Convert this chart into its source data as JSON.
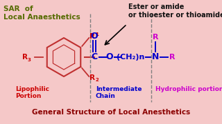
{
  "bg_color": "#f5c8c8",
  "title": "General Structure of Local Anesthetics",
  "title_color": "#8b0000",
  "title_fontsize": 7.5,
  "sar_text": "SAR  of\nLocal Anaesthetics",
  "sar_color": "#556b00",
  "sar_fontsize": 7.5,
  "ester_text": "Ester or amide\nor thioester or thioamide",
  "ester_color": "#111111",
  "ester_fontsize": 7,
  "lipophilic_text": "Lipophilic\nPortion",
  "lipophilic_color": "#cc0000",
  "lipophilic_fontsize": 6.5,
  "intermediate_text": "Intermediate\nChain",
  "intermediate_color": "#0000cc",
  "intermediate_fontsize": 6.5,
  "hydrophilic_text": "Hydrophilic portion",
  "hydrophilic_color": "#cc00cc",
  "hydrophilic_fontsize": 6.5,
  "ring_color": "#c03030",
  "R_color": "#cc0000",
  "R_hydro_color": "#cc00cc",
  "N_color": "#0000cc",
  "bond_color": "#cc0000",
  "chain_color": "#000088",
  "carbonyl_color": "#0000cc"
}
